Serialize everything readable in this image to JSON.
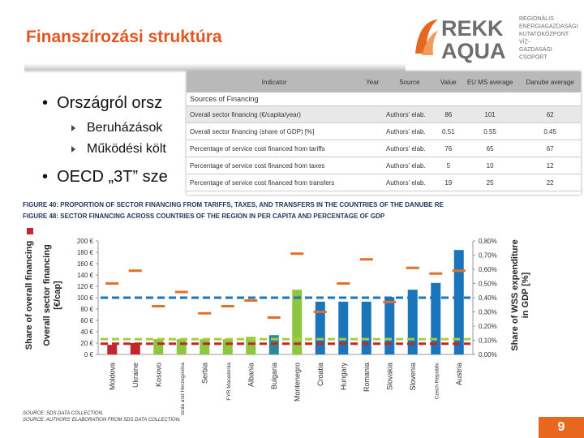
{
  "header": {
    "title": "Finanszírozási struktúra",
    "logo": {
      "name": "REKK",
      "name2": "AQUA",
      "lines": [
        "REGIONÁLIS",
        "ENERGIAGAZDASÁGI",
        "KUTATÓKÖZPONT",
        "VÍZ-",
        "GAZDASÁGI",
        "CSOPORT"
      ]
    }
  },
  "bullets": [
    {
      "text": "Országról orsz",
      "items": [
        "Beruházások",
        "Működési költ"
      ]
    },
    {
      "text": "OECD „3T” sze",
      "items": []
    }
  ],
  "table": {
    "columns": [
      "Indicator",
      "Year",
      "Source",
      "Value",
      "EU MS average",
      "Danube average"
    ],
    "section": "Sources of Financing",
    "rows": [
      [
        "Overall sector financing (€/capita/year)",
        "",
        "Authors' elab.",
        "86",
        "101",
        "62"
      ],
      [
        "Overall sector financing (share of GDP) [%]",
        "",
        "Authors' elab.",
        "0.51",
        "0.55",
        "0.45"
      ],
      [
        "Percentage of service cost financed from tariffs",
        "",
        "Authors' elab.",
        "76",
        "65",
        "67"
      ],
      [
        "Percentage of service cost financed from taxes",
        "",
        "Authors' elab.",
        "5",
        "10",
        "12"
      ],
      [
        "Percentage of service cost financed from transfers",
        "",
        "Authors' elab.",
        "19",
        "25",
        "22"
      ]
    ]
  },
  "figure": {
    "captions": [
      "FIGURE 40: PROPORTION OF SECTOR FINANCING FROM TARIFFS, TAXES, AND TRANSFERS IN THE COUNTRIES OF THE DANUBE RE",
      "FIGURE 48: SECTOR FINANCING ACROSS COUNTRIES OF THE REGION IN PER CAPITA AND PERCENTAGE OF GDP"
    ],
    "chart": {
      "type": "bar",
      "y_label_hidden": "Share of overall financing",
      "y_label": [
        "Overall sector financing",
        "[€/cap]"
      ],
      "y2_label": [
        "Share of WSS expenditure",
        "in GDP [%]"
      ],
      "categories": [
        "Moldova",
        "Ukraine",
        "Kosovo",
        "Bosnia and Herzegovina",
        "Serbia",
        "FYR Macedonia",
        "Albania",
        "Bulgaria",
        "Montenegro",
        "Croatia",
        "Hungary",
        "Romania",
        "Slovakia",
        "Slovenia",
        "Czech Republic",
        "Austria"
      ],
      "series": [
        {
          "values": [
            17,
            20,
            27,
            27,
            27,
            27,
            31,
            34,
            114,
            93,
            93,
            93,
            101,
            114,
            126,
            184
          ],
          "colors": [
            "#c1272d",
            "#c1272d",
            "#8dc63f",
            "#8dc63f",
            "#8dc63f",
            "#8dc63f",
            "#8dc63f",
            "#2a8a9a",
            "#8dc63f",
            "#1b75bb",
            "#1b75bb",
            "#1b75bb",
            "#1b75bb",
            "#1b75bb",
            "#1b75bb",
            "#1b75bb"
          ]
        },
        {
          "axis": "y2",
          "marker": "dash",
          "color": "#e2702a",
          "values": [
            0.5,
            0.59,
            0.34,
            0.44,
            0.29,
            0.34,
            0.38,
            0.26,
            0.71,
            0.3,
            0.5,
            0.67,
            0.37,
            0.61,
            0.57,
            0.59
          ]
        }
      ],
      "reference_lines": [
        {
          "value": 100,
          "color": "#1b75bb"
        },
        {
          "value": 27,
          "color": "#a6ce39"
        },
        {
          "value": 19,
          "color": "#c1272d"
        }
      ],
      "ylim": [
        0,
        200
      ],
      "yticks": [
        {
          "value": 0,
          "label": "0 €"
        },
        {
          "value": 20,
          "label": "20 €"
        },
        {
          "value": 40,
          "label": "40 €"
        },
        {
          "value": 60,
          "label": "60 €"
        },
        {
          "value": 80,
          "label": "80 €"
        },
        {
          "value": 100,
          "label": "100 €"
        },
        {
          "value": 120,
          "label": "120 €"
        },
        {
          "value": 140,
          "label": "140 €"
        },
        {
          "value": 160,
          "label": "160 €"
        },
        {
          "value": 180,
          "label": "180 €"
        },
        {
          "value": 200,
          "label": "200 €"
        }
      ],
      "y2lim": [
        0,
        0.8
      ],
      "y2ticks": [
        {
          "value": 0,
          "label": "0,00%"
        },
        {
          "value": 0.1,
          "label": "0,10%"
        },
        {
          "value": 0.2,
          "label": "0,20%"
        },
        {
          "value": 0.3,
          "label": "0,30%"
        },
        {
          "value": 0.4,
          "label": "0,40%"
        },
        {
          "value": 0.5,
          "label": "0,50%"
        },
        {
          "value": 0.6,
          "label": "0,60%"
        },
        {
          "value": 0.7,
          "label": "0,70%"
        },
        {
          "value": 0.8,
          "label": "0,80%"
        }
      ]
    },
    "sources": [
      "SOURCE: SDS DATA COLLECTION.",
      "SOURCE: AUTHORS' ELABORATION FROM SDS DATA COLLECTION."
    ]
  },
  "page_number": "9"
}
